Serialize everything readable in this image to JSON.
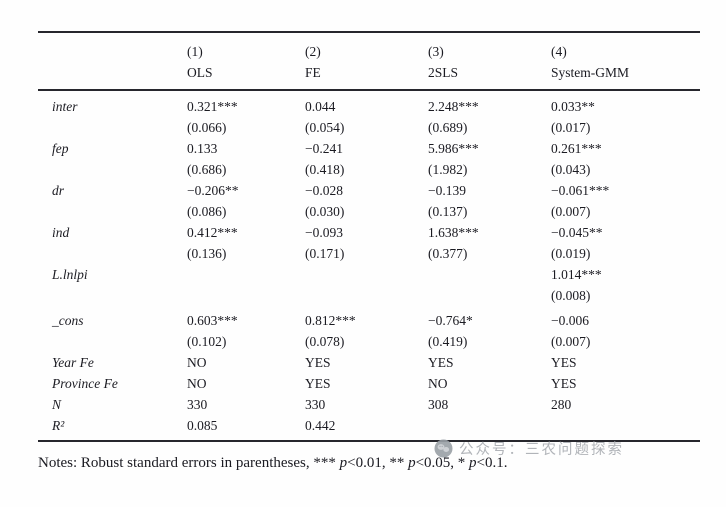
{
  "table": {
    "columns": [
      {
        "number": "(1)",
        "method": "OLS"
      },
      {
        "number": "(2)",
        "method": "FE"
      },
      {
        "number": "(3)",
        "method": "2SLS"
      },
      {
        "number": "(4)",
        "method": "System-GMM"
      }
    ],
    "coef_rows": [
      {
        "label": "inter",
        "cells": [
          "0.321***",
          "0.044",
          "2.248***",
          "0.033**"
        ],
        "se": [
          "(0.066)",
          "(0.054)",
          "(0.689)",
          "(0.017)"
        ]
      },
      {
        "label": "fep",
        "cells": [
          "0.133",
          "−0.241",
          "5.986***",
          "0.261***"
        ],
        "se": [
          "(0.686)",
          "(0.418)",
          "(1.982)",
          "(0.043)"
        ]
      },
      {
        "label": "dr",
        "cells": [
          "−0.206**",
          "−0.028",
          "−0.139",
          "−0.061***"
        ],
        "se": [
          "(0.086)",
          "(0.030)",
          "(0.137)",
          "(0.007)"
        ]
      },
      {
        "label": "ind",
        "cells": [
          "0.412***",
          "−0.093",
          "1.638***",
          "−0.045**"
        ],
        "se": [
          "(0.136)",
          "(0.171)",
          "(0.377)",
          "(0.019)"
        ]
      },
      {
        "label": "L.lnlpi",
        "cells": [
          "",
          "",
          "",
          "1.014***"
        ],
        "se": [
          "",
          "",
          "",
          "(0.008)"
        ]
      },
      {
        "label": "_cons",
        "cells": [
          "0.603***",
          "0.812***",
          "−0.764*",
          "−0.006"
        ],
        "se": [
          "(0.102)",
          "(0.078)",
          "(0.419)",
          "(0.007)"
        ]
      }
    ],
    "info_rows": [
      {
        "label": "Year Fe",
        "cells": [
          "NO",
          "YES",
          "YES",
          "YES"
        ]
      },
      {
        "label": "Province Fe",
        "cells": [
          "NO",
          "YES",
          "NO",
          "YES"
        ]
      },
      {
        "label": "N",
        "cells": [
          "330",
          "330",
          "308",
          "280"
        ]
      },
      {
        "label": "R²",
        "cells": [
          "0.085",
          "0.442",
          "",
          ""
        ]
      }
    ]
  },
  "notes": {
    "lead": "Notes: Robust standard errors in parentheses,",
    "sig_items": [
      {
        "stars": "***",
        "p": "p",
        "threshold": "<0.01,"
      },
      {
        "stars": "**",
        "p": "p",
        "threshold": "<0.05,"
      },
      {
        "stars": "*",
        "p": "p",
        "threshold": "<0.1."
      }
    ]
  },
  "watermark": {
    "text": "公众号：三农问题探索",
    "icon": "wechat-official-account-icon",
    "color": "#a9adb2"
  },
  "colors": {
    "text": "#1b1b22",
    "rule": "#27272d",
    "background": "#ffffff",
    "watermark": "#a9adb2"
  }
}
